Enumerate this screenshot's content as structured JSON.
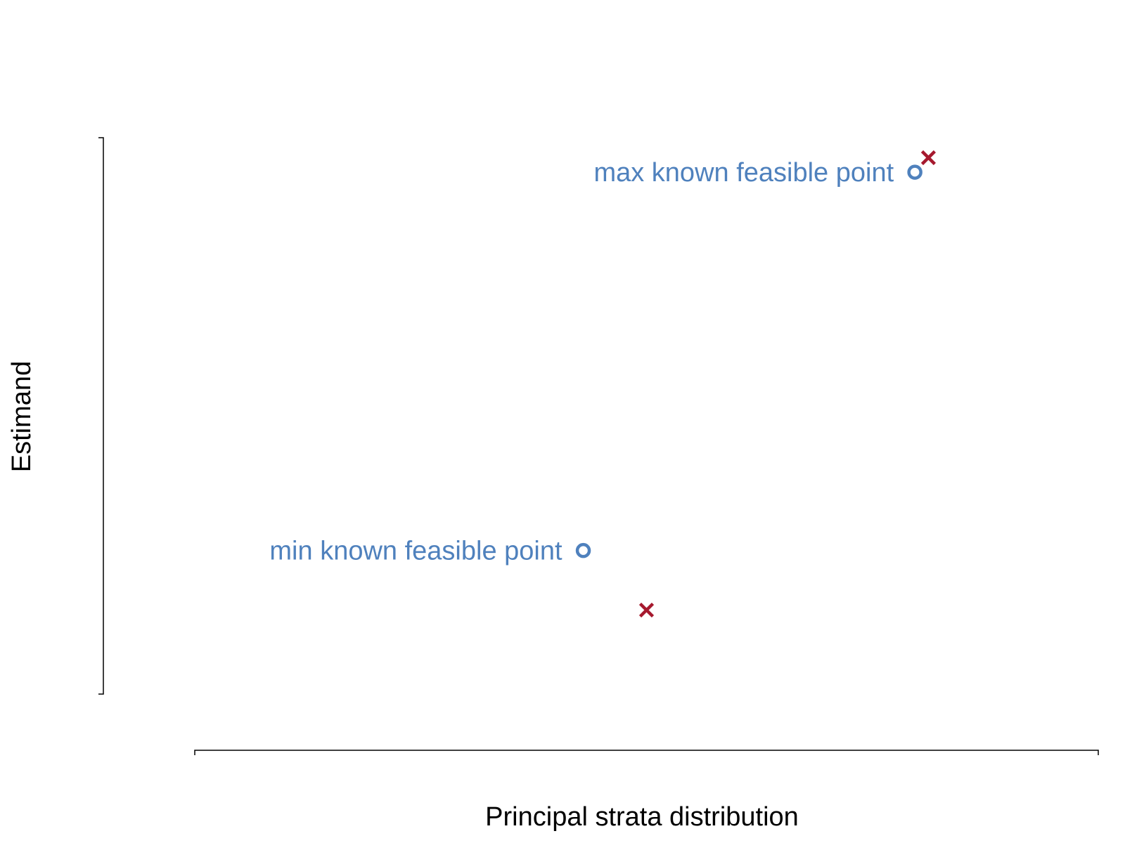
{
  "chart_data": {
    "type": "scatter",
    "xlabel": "Principal strata distribution",
    "ylabel": "Estimand",
    "xlim": [
      0,
      1
    ],
    "ylim": [
      0,
      1
    ],
    "grid": false,
    "colors": {
      "known_feasible": "#4f81bd",
      "cross": "#a6192e",
      "axis": "#000000"
    },
    "series": [
      {
        "marker": "circle",
        "color": "#4f81bd",
        "points": [
          {
            "x": 0.43,
            "y": 0.258,
            "label": "min known feasible point"
          },
          {
            "x": 0.797,
            "y": 0.938,
            "label": "max known feasible point"
          }
        ]
      },
      {
        "marker": "cross",
        "color": "#a6192e",
        "points": [
          {
            "x": 0.5,
            "y": 0.151
          },
          {
            "x": 0.812,
            "y": 0.964
          }
        ]
      }
    ]
  }
}
